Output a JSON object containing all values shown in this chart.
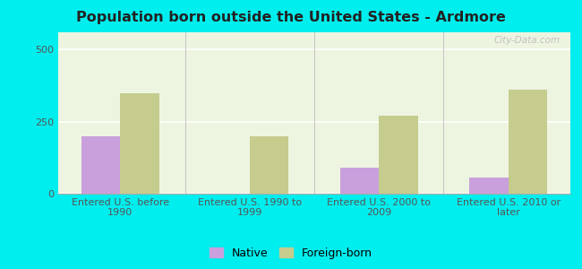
{
  "title": "Population born outside the United States - Ardmore",
  "categories": [
    "Entered U.S. before\n1990",
    "Entered U.S. 1990 to\n1999",
    "Entered U.S. 2000 to\n2009",
    "Entered U.S. 2010 or\nlater"
  ],
  "native_values": [
    200,
    0,
    90,
    55
  ],
  "foreign_values": [
    350,
    200,
    270,
    360
  ],
  "native_color": "#c9a0dc",
  "foreign_color": "#c5cc8e",
  "background_color": "#edf5e1",
  "outer_background": "#00eeee",
  "ylim": [
    0,
    560
  ],
  "yticks": [
    0,
    250,
    500
  ],
  "title_fontsize": 11.5,
  "tick_fontsize": 8,
  "legend_labels": [
    "Native",
    "Foreign-born"
  ],
  "watermark": "City-Data.com"
}
